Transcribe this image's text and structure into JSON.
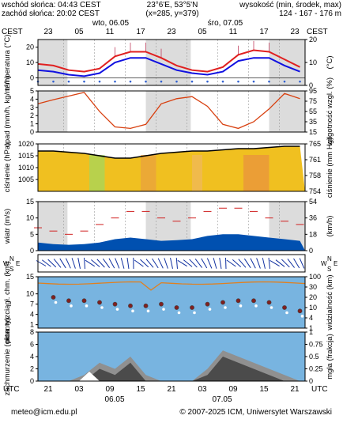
{
  "header": {
    "sunrise": "wschód słońca: 04:43 CEST",
    "sunset": "zachód słońca: 20:02 CEST",
    "coords": "23°6'E, 53°5'N",
    "grid": "(x=285, y=379)",
    "elevation_title": "wysokość (min, środek, max)",
    "elevation_values": "124 - 167 - 176 m"
  },
  "timebar": {
    "tz_left": "CEST",
    "tz_right": "CEST",
    "day1": "wto, 06.05",
    "day2": "śro, 07.05",
    "top_hours": [
      "23",
      "05",
      "11",
      "17",
      "23",
      "05",
      "11",
      "17",
      "23",
      "05"
    ],
    "bottom_tz": "UTC",
    "bottom_hours": [
      "21",
      "03",
      "09",
      "15",
      "21",
      "03",
      "09",
      "15",
      "21",
      "03"
    ],
    "bottom_day1": "06.05",
    "bottom_day2": "07.05"
  },
  "footer": {
    "email": "meteo@icm.edu.pl",
    "copyright": "© 2007-2025 ICM, Uniwersytet Warszawski"
  },
  "colors": {
    "night": "#dcdcdc",
    "day": "#ffffff",
    "temp_red": "#e02020",
    "temp_blue": "#1010e0",
    "precip_red": "#d84010",
    "pressure_yellow": "#f0c020",
    "wind_blue": "#0050b0",
    "cloud_sky": "#78b4e0"
  },
  "chart_data": [
    {
      "type": "line",
      "name": "temperatura",
      "ylabel": "temperatura (°C)",
      "ylabel_right": "(°C)",
      "ylim": [
        -5,
        25
      ],
      "yticks": [
        0,
        10,
        20
      ],
      "x_hours": [
        0,
        3,
        6,
        9,
        12,
        15,
        18,
        21,
        24,
        27,
        30,
        33,
        36,
        39,
        42,
        45,
        48,
        51
      ],
      "series": [
        {
          "values": [
            9,
            8,
            5,
            4,
            6,
            14,
            17,
            17,
            13,
            8,
            5,
            4,
            7,
            15,
            18,
            17,
            12,
            7
          ]
        },
        {
          "values": [
            5,
            4,
            2,
            1,
            3,
            10,
            13,
            13,
            9,
            5,
            3,
            2,
            4,
            11,
            13,
            13,
            8,
            4
          ]
        }
      ]
    },
    {
      "type": "line",
      "name": "opad",
      "ylabel": "opad (mm/h, kg/m²/h)",
      "ylabel_right": "wilgotność wzgl. (%)",
      "ylim": [
        0,
        5
      ],
      "yticks": [
        0,
        1,
        2,
        3,
        4,
        5
      ],
      "y2lim": [
        15,
        95
      ],
      "y2ticks": [
        15,
        35,
        55,
        75,
        95
      ],
      "x_hours": [
        0,
        3,
        6,
        9,
        12,
        15,
        18,
        21,
        24,
        27,
        30,
        33,
        36,
        39,
        42,
        45,
        48,
        51
      ],
      "series": [
        {
          "values": [
            70,
            78,
            85,
            92,
            55,
            25,
            22,
            30,
            70,
            80,
            84,
            65,
            30,
            22,
            35,
            60,
            90,
            80
          ]
        }
      ]
    },
    {
      "type": "area",
      "name": "ciśnienie",
      "ylabel": "ciśnienie (hPa)",
      "ylabel_right": "ciśnienie (mm Hg)",
      "ylim": [
        1000,
        1020
      ],
      "yticks": [
        1005,
        1010,
        1015,
        1020
      ],
      "y2ticks": [
        754,
        758,
        761,
        765
      ],
      "x_hours": [
        0,
        3,
        6,
        9,
        12,
        15,
        18,
        21,
        24,
        27,
        30,
        33,
        36,
        39,
        42,
        45,
        48,
        51
      ],
      "series": [
        {
          "values": [
            1017,
            1017,
            1016.5,
            1016,
            1015,
            1014,
            1014,
            1015,
            1016,
            1016.5,
            1017,
            1017,
            1017.5,
            1018,
            1018,
            1018.5,
            1019,
            1019
          ]
        }
      ]
    },
    {
      "type": "line",
      "name": "wiatr",
      "ylabel": "wiatr (m/s)",
      "ylabel_right": "(km/h)",
      "ylim": [
        0,
        15
      ],
      "yticks": [
        0,
        5,
        10,
        15
      ],
      "y2ticks": [
        0,
        18,
        36,
        54
      ],
      "x_hours": [
        0,
        3,
        6,
        9,
        12,
        15,
        18,
        21,
        24,
        27,
        30,
        33,
        36,
        39,
        42,
        45,
        48,
        51
      ],
      "series": [
        {
          "values": [
            2.5,
            2.0,
            1.8,
            2.0,
            2.5,
            3.5,
            4.0,
            3.5,
            3.0,
            3.2,
            3.5,
            4.5,
            5.0,
            5.0,
            4.5,
            4.0,
            3.5,
            3.0
          ]
        },
        {
          "values": [
            7,
            6,
            5,
            6,
            8,
            10,
            12,
            12,
            10,
            9,
            10,
            12,
            13,
            13,
            12,
            10,
            9,
            8
          ]
        }
      ]
    },
    {
      "type": "scatter",
      "name": "podstawa chmur",
      "ylabel": "pion. rozciągł. chm. (km)",
      "ylabel_right": "widzialność (km)",
      "ylim": [
        0,
        15
      ],
      "yticks": [
        1,
        4,
        7,
        10,
        15
      ],
      "y2ticks": [
        1,
        4,
        10,
        20,
        30,
        100
      ],
      "x_hours": [
        3,
        6,
        9,
        12,
        15,
        18,
        21,
        24,
        27,
        30,
        33,
        36,
        39,
        42,
        45,
        48,
        51
      ],
      "series": [
        {
          "values": [
            9,
            8,
            8,
            7.5,
            7,
            6.5,
            6.5,
            7,
            6,
            6,
            7,
            7.5,
            8,
            8,
            7.5,
            6,
            5
          ]
        }
      ]
    },
    {
      "type": "area",
      "name": "zachmurzenie",
      "ylabel": "zachmurzenie (oktanty)",
      "ylabel_right": "mgła (frakcja)",
      "ylim": [
        0,
        8
      ],
      "yticks": [
        0,
        2,
        4,
        6,
        8
      ],
      "y2ticks": [
        0,
        0.25,
        0.5,
        0.75,
        1
      ],
      "x_hours": [
        0,
        3,
        6,
        9,
        12,
        15,
        18,
        21,
        24,
        27,
        30,
        33,
        36,
        39,
        42,
        45,
        48,
        51
      ],
      "series": [
        {
          "values": [
            0,
            0,
            0,
            1,
            3,
            2,
            4,
            1,
            0,
            0,
            0,
            2,
            5,
            4,
            3,
            2,
            1,
            0
          ]
        }
      ]
    }
  ]
}
